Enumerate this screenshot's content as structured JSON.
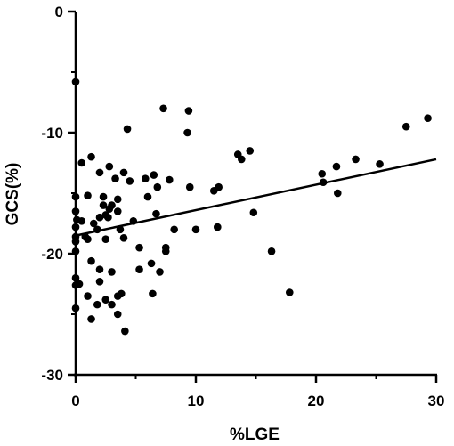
{
  "chart_data": {
    "type": "scatter",
    "title": "",
    "xlabel": "%LGE",
    "ylabel": "GCS(%)",
    "xlim": [
      0,
      30
    ],
    "ylim": [
      -30,
      0
    ],
    "x_ticks": [
      0,
      10,
      20,
      30
    ],
    "y_ticks": [
      0,
      -10,
      -20,
      -30
    ],
    "grid": false,
    "legend": "none",
    "point_color": "#000000",
    "line_color": "#000000",
    "regression_line": {
      "x": [
        0,
        30
      ],
      "y": [
        -18.5,
        -12.2
      ]
    },
    "points": [
      [
        0,
        -5.8
      ],
      [
        0,
        -15.3
      ],
      [
        0,
        -16.5
      ],
      [
        0,
        -17.8
      ],
      [
        0,
        -18.6
      ],
      [
        0,
        -19.0
      ],
      [
        0,
        -19.8
      ],
      [
        0,
        -22.0
      ],
      [
        0,
        -22.6
      ],
      [
        0,
        -24.5
      ],
      [
        0.1,
        -17.2
      ],
      [
        0.3,
        -22.5
      ],
      [
        0.5,
        -12.5
      ],
      [
        0.5,
        -17.3
      ],
      [
        0.8,
        -18.6
      ],
      [
        1.0,
        -15.2
      ],
      [
        1.0,
        -18.8
      ],
      [
        1.0,
        -23.5
      ],
      [
        1.3,
        -12.0
      ],
      [
        1.3,
        -25.4
      ],
      [
        1.3,
        -20.6
      ],
      [
        1.5,
        -17.5
      ],
      [
        1.8,
        -18.0
      ],
      [
        1.8,
        -24.2
      ],
      [
        2.0,
        -13.3
      ],
      [
        2.0,
        -17.0
      ],
      [
        2.0,
        -21.3
      ],
      [
        2.0,
        -22.3
      ],
      [
        2.3,
        -15.3
      ],
      [
        2.3,
        -16.0
      ],
      [
        2.5,
        -16.8
      ],
      [
        2.5,
        -18.8
      ],
      [
        2.5,
        -23.8
      ],
      [
        2.7,
        -17.0
      ],
      [
        2.8,
        -12.8
      ],
      [
        2.8,
        -16.3
      ],
      [
        3.0,
        -16.0
      ],
      [
        3.0,
        -21.5
      ],
      [
        3.0,
        -24.2
      ],
      [
        3.3,
        -13.8
      ],
      [
        3.5,
        -15.5
      ],
      [
        3.5,
        -16.5
      ],
      [
        3.5,
        -25.0
      ],
      [
        3.5,
        -23.5
      ],
      [
        3.7,
        -18.0
      ],
      [
        3.8,
        -23.3
      ],
      [
        4.0,
        -13.3
      ],
      [
        4.0,
        -18.7
      ],
      [
        4.1,
        -26.4
      ],
      [
        4.3,
        -9.7
      ],
      [
        4.5,
        -14.0
      ],
      [
        4.8,
        -17.3
      ],
      [
        5.3,
        -21.3
      ],
      [
        5.3,
        -19.5
      ],
      [
        5.8,
        -13.8
      ],
      [
        6.0,
        -15.3
      ],
      [
        6.3,
        -20.8
      ],
      [
        6.4,
        -23.3
      ],
      [
        6.5,
        -13.5
      ],
      [
        6.7,
        -16.7
      ],
      [
        6.8,
        -14.5
      ],
      [
        7.0,
        -21.5
      ],
      [
        7.3,
        -8.0
      ],
      [
        7.5,
        -19.8
      ],
      [
        7.5,
        -19.5
      ],
      [
        7.8,
        -13.9
      ],
      [
        8.2,
        -18.0
      ],
      [
        9.3,
        -10.0
      ],
      [
        9.4,
        -8.2
      ],
      [
        9.5,
        -14.5
      ],
      [
        10.0,
        -18.0
      ],
      [
        11.5,
        -14.8
      ],
      [
        11.9,
        -14.5
      ],
      [
        11.8,
        -17.8
      ],
      [
        13.5,
        -11.8
      ],
      [
        13.8,
        -12.2
      ],
      [
        14.5,
        -11.5
      ],
      [
        14.8,
        -16.6
      ],
      [
        16.3,
        -19.8
      ],
      [
        17.8,
        -23.2
      ],
      [
        20.5,
        -13.4
      ],
      [
        20.6,
        -14.1
      ],
      [
        21.7,
        -12.8
      ],
      [
        21.8,
        -15.0
      ],
      [
        23.3,
        -12.2
      ],
      [
        25.3,
        -12.6
      ],
      [
        27.5,
        -9.5
      ],
      [
        29.3,
        -8.8
      ]
    ]
  }
}
